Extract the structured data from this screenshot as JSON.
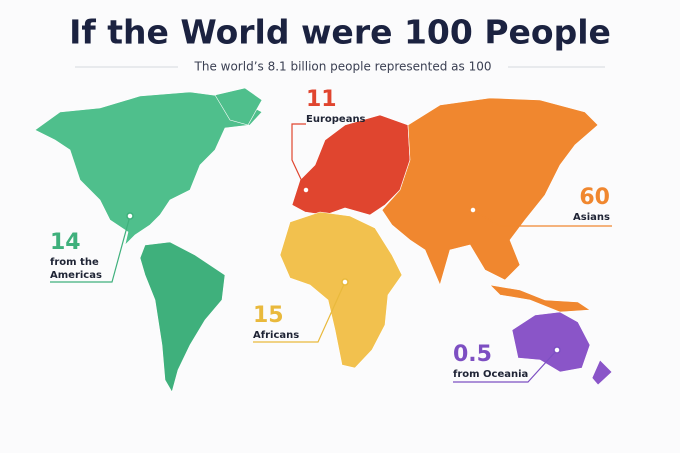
{
  "header": {
    "title": "If the World were 100 People",
    "subtitle": "The world’s 8.1 billion people represented as 100"
  },
  "regions": [
    {
      "value": 14,
      "label": [
        "from the",
        "Americas"
      ],
      "color": "#3fb07c"
    },
    {
      "value": 11,
      "label": [
        "Europeans"
      ],
      "color": "#e0452f"
    },
    {
      "value": 60,
      "label": [
        "Asians"
      ],
      "color": "#f0872f"
    },
    {
      "value": 15,
      "label": [
        "Africans"
      ],
      "color": "#e9b93c"
    },
    {
      "value": 0.5,
      "label": [
        "from Oceania"
      ],
      "color": "#7d4fc2"
    }
  ]
}
